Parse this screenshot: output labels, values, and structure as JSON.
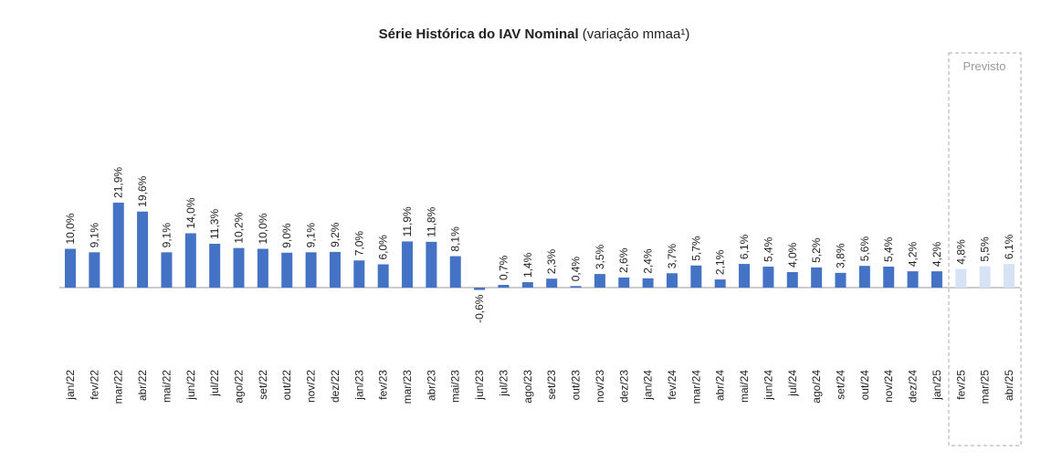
{
  "chart_data": {
    "type": "bar",
    "title": "Série Histórica do IAV Nominal",
    "title_note": "(variação mmaa¹)",
    "annotation": "Previsto",
    "categories": [
      "jan/22",
      "fev/22",
      "mar/22",
      "abr/22",
      "mai/22",
      "jun/22",
      "jul/22",
      "ago/22",
      "set/22",
      "out/22",
      "nov/22",
      "dez/22",
      "jan/23",
      "fev/23",
      "mar/23",
      "abr/23",
      "mai/23",
      "jun/23",
      "jul/23",
      "ago/23",
      "set/23",
      "out/23",
      "nov/23",
      "dez/23",
      "jan/24",
      "fev/24",
      "mar/24",
      "abr/24",
      "mai/24",
      "jun/24",
      "jul/24",
      "ago/24",
      "set/24",
      "out/24",
      "nov/24",
      "dez/24",
      "jan/25",
      "fev/25",
      "mar/25",
      "abr/25"
    ],
    "values": [
      10.0,
      9.1,
      21.9,
      19.6,
      9.1,
      14.0,
      11.3,
      10.2,
      10.0,
      9.0,
      9.1,
      9.2,
      7.0,
      6.0,
      11.9,
      11.8,
      8.1,
      -0.6,
      0.7,
      1.4,
      2.3,
      0.4,
      3.5,
      2.6,
      2.4,
      3.7,
      5.7,
      2.1,
      6.1,
      5.4,
      4.0,
      5.2,
      3.8,
      5.6,
      5.4,
      4.2,
      4.2,
      4.8,
      5.5,
      6.1
    ],
    "value_labels": [
      "10,0%",
      "9,1%",
      "21,9%",
      "19,6%",
      "9,1%",
      "14,0%",
      "11,3%",
      "10,2%",
      "10,0%",
      "9,0%",
      "9,1%",
      "9,2%",
      "7,0%",
      "6,0%",
      "11,9%",
      "11,8%",
      "8,1%",
      "-0,6%",
      "0,7%",
      "1,4%",
      "2,3%",
      "0,4%",
      "3,5%",
      "2,6%",
      "2,4%",
      "3,7%",
      "5,7%",
      "2,1%",
      "6,1%",
      "5,4%",
      "4,0%",
      "5,2%",
      "3,8%",
      "5,6%",
      "5,4%",
      "4,2%",
      "4,2%",
      "4,8%",
      "5,5%",
      "6,1%"
    ],
    "colors": [
      "#4472c4",
      "#4472c4",
      "#4472c4",
      "#4472c4",
      "#4472c4",
      "#4472c4",
      "#4472c4",
      "#4472c4",
      "#4472c4",
      "#4472c4",
      "#4472c4",
      "#4472c4",
      "#4472c4",
      "#4472c4",
      "#4472c4",
      "#4472c4",
      "#4472c4",
      "#4472c4",
      "#4472c4",
      "#4472c4",
      "#4472c4",
      "#4472c4",
      "#4472c4",
      "#4472c4",
      "#4472c4",
      "#4472c4",
      "#4472c4",
      "#4472c4",
      "#4472c4",
      "#4472c4",
      "#4472c4",
      "#4472c4",
      "#4472c4",
      "#4472c4",
      "#4472c4",
      "#4472c4",
      "#4472c4",
      "#d6e3f5",
      "#d6e3f5",
      "#d6e3f5"
    ]
  }
}
